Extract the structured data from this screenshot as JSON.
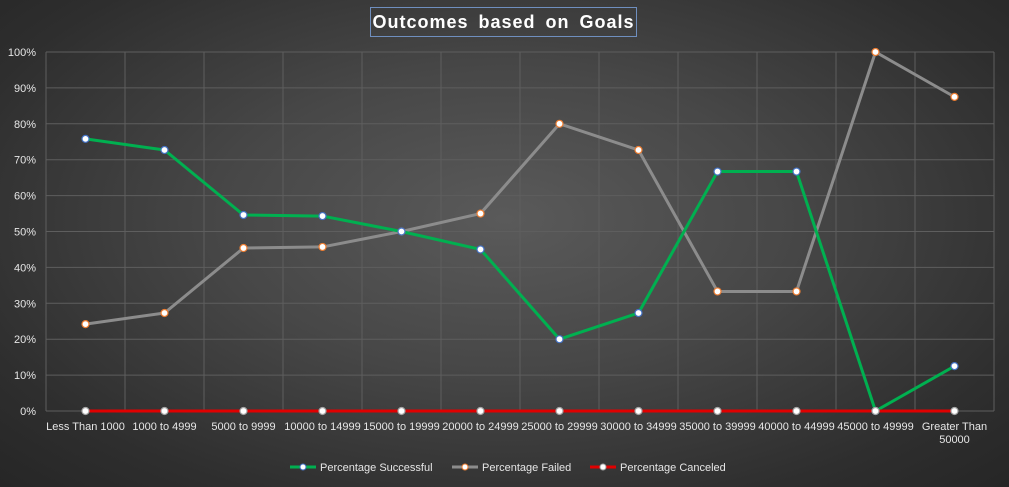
{
  "chart_data": {
    "type": "line",
    "title": "Outcomes  based  on  Goals",
    "categories": [
      "Less Than 1000",
      "1000 to 4999",
      "5000 to 9999",
      "10000 to 14999",
      "15000 to 19999",
      "20000 to 24999",
      "25000 to 29999",
      "30000 to 34999",
      "35000 to 39999",
      "40000 to 44999",
      "45000 to 49999",
      "Greater Than 50000"
    ],
    "yticks": [
      "0%",
      "10%",
      "20%",
      "30%",
      "40%",
      "50%",
      "60%",
      "70%",
      "80%",
      "90%",
      "100%"
    ],
    "ylim": [
      0,
      100
    ],
    "grid": true,
    "legend_position": "bottom",
    "series": [
      {
        "name": "Percentage Successful",
        "color": "#00b050",
        "marker_fill": "#ffffff",
        "marker_edge": "#4472c4",
        "values": [
          75.8,
          72.7,
          54.6,
          54.3,
          50,
          45,
          20,
          27.3,
          66.7,
          66.7,
          0,
          12.5
        ]
      },
      {
        "name": "Percentage Failed",
        "color": "#8c8c8c",
        "marker_fill": "#ffffff",
        "marker_edge": "#ed7d31",
        "values": [
          24.2,
          27.3,
          45.4,
          45.7,
          50,
          55,
          80,
          72.7,
          33.3,
          33.3,
          100,
          87.5
        ]
      },
      {
        "name": "Percentage Canceled",
        "color": "#e00000",
        "marker_fill": "#ffffff",
        "marker_edge": "#a5a5a5",
        "values": [
          0,
          0,
          0,
          0,
          0,
          0,
          0,
          0,
          0,
          0,
          0,
          0
        ]
      }
    ]
  }
}
